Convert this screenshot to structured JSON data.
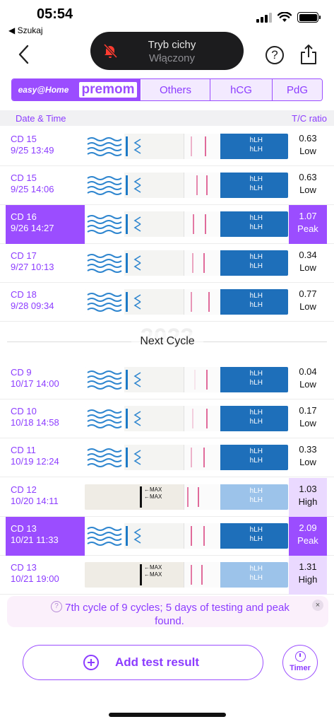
{
  "status_bar": {
    "time": "05:54",
    "back_app": "◀ Szukaj"
  },
  "silent_mode": {
    "title": "Tryb cichy",
    "subtitle": "Włączony"
  },
  "header": {
    "help_glyph": "?"
  },
  "tabs": [
    {
      "label": "easy@Home",
      "selected": true
    },
    {
      "label": "premom",
      "selected": true
    },
    {
      "label": "Others",
      "selected": false
    },
    {
      "label": "hCG",
      "selected": false
    },
    {
      "label": "PdG",
      "selected": false
    }
  ],
  "columns": {
    "date_time": "Date & Time",
    "tc_ratio": "T/C ratio"
  },
  "strip_handle_text": "hLH\nhLH",
  "cycle1": [
    {
      "cd": "CD 15",
      "datetime": "9/25 13:49",
      "ratio": "0.63",
      "level": "Low"
    },
    {
      "cd": "CD 15",
      "datetime": "9/25 14:06",
      "ratio": "0.63",
      "level": "Low"
    },
    {
      "cd": "CD 16",
      "datetime": "9/26 14:27",
      "ratio": "1.07",
      "level": "Peak"
    },
    {
      "cd": "CD 17",
      "datetime": "9/27 10:13",
      "ratio": "0.34",
      "level": "Low"
    },
    {
      "cd": "CD 18",
      "datetime": "9/28 09:34",
      "ratio": "0.77",
      "level": "Low"
    }
  ],
  "divider": {
    "year": "2023",
    "label": "Next Cycle"
  },
  "cycle2": [
    {
      "cd": "CD 9",
      "datetime": "10/17 14:00",
      "ratio": "0.04",
      "level": "Low"
    },
    {
      "cd": "CD 10",
      "datetime": "10/18 14:58",
      "ratio": "0.17",
      "level": "Low"
    },
    {
      "cd": "CD 11",
      "datetime": "10/19 12:24",
      "ratio": "0.33",
      "level": "Low"
    },
    {
      "cd": "CD 12",
      "datetime": "10/20 14:11",
      "ratio": "1.03",
      "level": "High"
    },
    {
      "cd": "CD 13",
      "datetime": "10/21 11:33",
      "ratio": "2.09",
      "level": "Peak"
    },
    {
      "cd": "CD 13",
      "datetime": "10/21 19:00",
      "ratio": "1.31",
      "level": "High"
    }
  ],
  "max_strip_text": "←MAX\n←MAX",
  "banner": {
    "icon_glyph": "?",
    "text": "7th cycle of 9 cycles; 5 days of testing and peak found.",
    "close_glyph": "×"
  },
  "actions": {
    "add_label": "Add test result",
    "timer_label": "Timer"
  },
  "colors": {
    "accent": "#9b4dff",
    "accent_text": "#8c3cff",
    "high_bg": "#ead9ff",
    "strip_blue": "#1e6fba",
    "test_line": "#e06a9a"
  }
}
